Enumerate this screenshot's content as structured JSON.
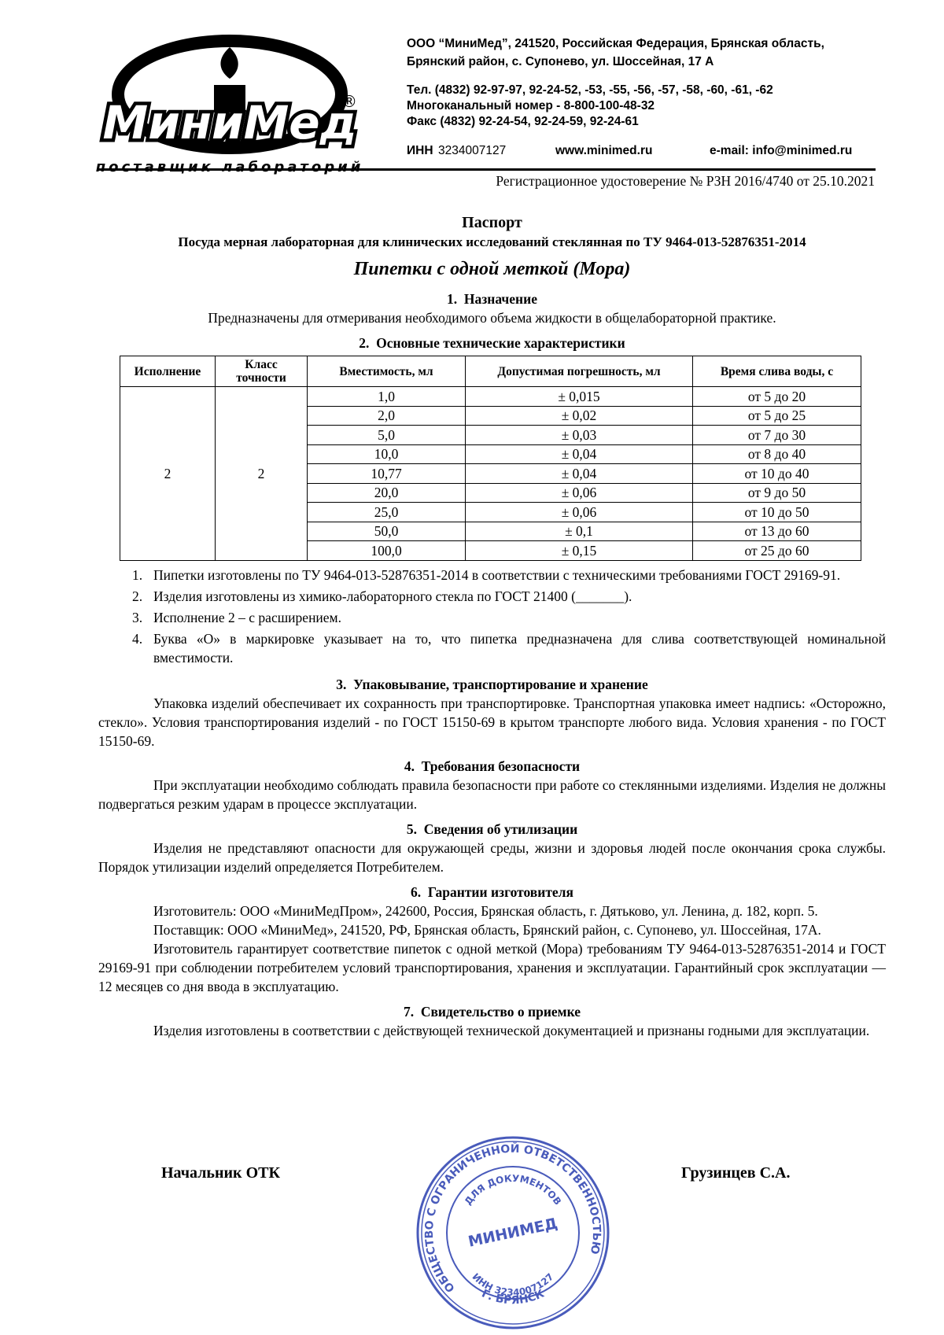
{
  "header": {
    "address": [
      "ООО “МиниМед”, 241520, Российская Федерация, Брянская область,",
      "Брянский район, с. Супонево, ул. Шоссейная, 17 А"
    ],
    "contacts": [
      "Тел. (4832) 92-97-97, 92-24-52, -53, -55, -56, -57, -58, -60, -61, -62",
      "Многоканальный номер - 8-800-100-48-32",
      "Факс (4832) 92-24-54, 92-24-59, 92-24-61"
    ],
    "inn_label": "ИНН",
    "inn": "3234007127",
    "website": "www.minimed.ru",
    "email": "e-mail: info@minimed.ru",
    "registration": "Регистрационное удостоверение № РЗН 2016/4740 от 25.10.2021"
  },
  "logo": {
    "name": "МиниМед",
    "registered": "®",
    "tagline": "поставщик лабораторий"
  },
  "document": {
    "title": "Паспорт",
    "subtitle": "Посуда мерная лабораторная для клинических исследований стеклянная по ТУ 9464-013-52876351-2014",
    "product": "Пипетки с одной меткой (Мора)"
  },
  "sections": [
    {
      "heading": "1.  Назначение",
      "centered": [
        "Предназначены для отмеривания необходимого объема жидкости в общелабораторной практике."
      ]
    },
    {
      "heading": "2.  Основные технические характеристики",
      "table": {
        "headers": [
          "Исполнение",
          "Класс точности",
          "Вместимость, мл",
          "Допустимая погрешность, мл",
          "Время слива воды, с"
        ],
        "execution": "2",
        "accuracy_class": "2",
        "rows": [
          [
            "1,0",
            "± 0,015",
            "от 5 до 20"
          ],
          [
            "2,0",
            "± 0,02",
            "от 5 до 25"
          ],
          [
            "5,0",
            "± 0,03",
            "от 7 до 30"
          ],
          [
            "10,0",
            "± 0,04",
            "от 8 до 40"
          ],
          [
            "10,77",
            "± 0,04",
            "от 10 до 40"
          ],
          [
            "20,0",
            "± 0,06",
            "от 9 до 50"
          ],
          [
            "25,0",
            "± 0,06",
            "от 10 до 50"
          ],
          [
            "50,0",
            "± 0,1",
            "от 13 до 60"
          ],
          [
            "100,0",
            "± 0,15",
            "от 25 до 60"
          ]
        ]
      },
      "notes": [
        {
          "number": "1.",
          "text": "Пипетки изготовлены по ТУ 9464-013-52876351-2014 в соответствии с техническими требованиями ГОСТ 29169-91."
        },
        {
          "number": "2.",
          "text": "Изделия изготовлены из химико-лабораторного стекла по ГОСТ 21400 (_______)."
        },
        {
          "number": "3.",
          "text": "Исполнение 2 – с расширением."
        },
        {
          "number": "4.",
          "text": "Буква «О» в маркировке указывает на то, что пипетка предназначена для слива соответствующей номинальной вместимости."
        }
      ]
    },
    {
      "heading": "3.  Упаковывание, транспортирование и хранение",
      "paragraphs": [
        "Упаковка изделий обеспечивает их сохранность при транспортировке. Транспортная упаковка имеет надпись: «Осторожно, стекло». Условия транспортирования изделий - по ГОСТ 15150-69 в крытом транспорте любого вида. Условия хранения - по ГОСТ 15150-69."
      ]
    },
    {
      "heading": "4.  Требования безопасности",
      "paragraphs": [
        "При эксплуатации необходимо соблюдать правила безопасности при работе со стеклянными изделиями. Изделия не должны подвергаться резким ударам в процессе эксплуатации."
      ]
    },
    {
      "heading": "5.  Сведения об утилизации",
      "paragraphs": [
        "Изделия не представляют опасности для окружающей среды, жизни и здоровья людей после окончания срока службы. Порядок утилизации изделий определяется Потребителем."
      ]
    },
    {
      "heading": "6.  Гарантии изготовителя",
      "paragraphs": [
        "Изготовитель: ООО «МиниМедПром», 242600, Россия, Брянская область, г. Дятьково, ул. Ленина, д. 182, корп. 5.",
        "Поставщик: ООО «МиниМед», 241520, РФ, Брянская область, Брянский район, с. Супонево, ул. Шоссейная, 17А.",
        "Изготовитель гарантирует соответствие пипеток с одной меткой (Мора) требованиям ТУ 9464-013-52876351-2014 и ГОСТ 29169-91 при соблюдении потребителем условий транспортирования, хранения и эксплуатации. Гарантийный срок эксплуатации — 12 месяцев со дня ввода в эксплуатацию."
      ]
    },
    {
      "heading": "7.  Свидетельство о приемке",
      "paragraphs": [
        "Изделия изготовлены в соответствии с действующей технической документацией и признаны годными для эксплуатации."
      ]
    }
  ],
  "signature": {
    "position": "Начальник ОТК",
    "name": "Грузинцев С.А."
  },
  "stamp": {
    "outer": "ОБЩЕСТВО С ОГРАНИЧЕННОЙ ОТВЕТСТВЕННОСТЬЮ",
    "inner": "ДЛЯ ДОКУМЕНТОВ",
    "name": "МИНИМЕД",
    "inn": "ИНН 3234007127",
    "city": "Г. БРЯНСК"
  }
}
